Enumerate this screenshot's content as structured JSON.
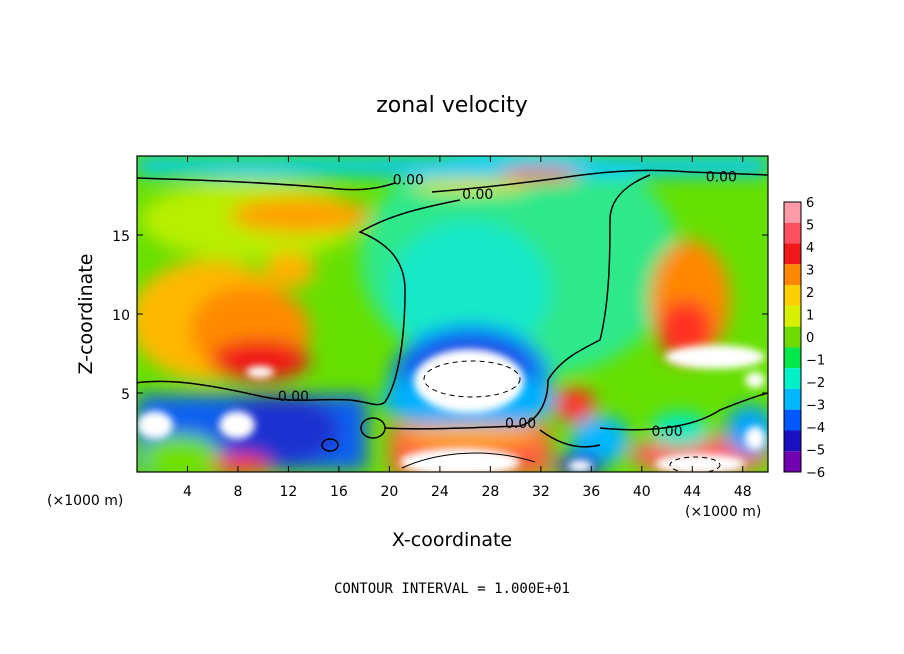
{
  "chart_data": {
    "type": "heatmap",
    "title": "zonal velocity",
    "xlabel": "X-coordinate",
    "ylabel": "Z-coordinate",
    "x_unit": "(×1000 m)",
    "xlim": [
      0,
      50
    ],
    "ylim": [
      0,
      20
    ],
    "x_ticks": [
      4,
      8,
      12,
      16,
      20,
      24,
      28,
      32,
      36,
      40,
      44,
      48
    ],
    "y_ticks": [
      5,
      10,
      15
    ],
    "colorbar": {
      "levels": [
        6,
        5,
        4,
        3,
        2,
        1,
        0,
        -1,
        -2,
        -3,
        -4,
        -5,
        -6
      ],
      "labels": [
        "6",
        "5",
        "4",
        "3",
        "2",
        "1",
        "0",
        "−1",
        "−2",
        "−3",
        "−4",
        "−5",
        "−6"
      ],
      "colors": [
        "#ff9aa8",
        "#ff5060",
        "#f01818",
        "#ff8800",
        "#ffd000",
        "#d6f000",
        "#6edc00",
        "#00e84a",
        "#00f0c8",
        "#00b8ff",
        "#0058ff",
        "#1a10c0",
        "#7000b0"
      ]
    },
    "contour_labels": [
      {
        "text": "0.00",
        "x": 21.5,
        "y": 18.5
      },
      {
        "text": "0.00",
        "x": 27,
        "y": 17.6
      },
      {
        "text": "0.00",
        "x": 46.3,
        "y": 18.7
      },
      {
        "text": "0.00",
        "x": 12.4,
        "y": 4.8
      },
      {
        "text": "0.00",
        "x": 30.4,
        "y": 3.1
      },
      {
        "text": "0.00",
        "x": 42,
        "y": 2.6
      }
    ],
    "footer": "CONTOUR INTERVAL = 1.000E+01"
  }
}
